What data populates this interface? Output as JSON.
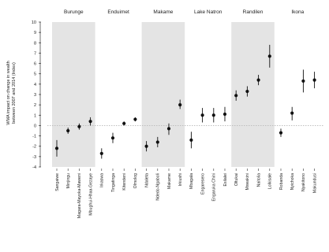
{
  "chart_data": {
    "type": "scatter",
    "ylabel_lines": [
      "WMA impact on change in wealth",
      "between 2007 and 2014 (Index)"
    ],
    "ylim": [
      -4,
      10
    ],
    "yticks": [
      -4,
      -3,
      -2,
      -1,
      0,
      1,
      2,
      3,
      4,
      5,
      6,
      7,
      8,
      9,
      10
    ],
    "reference_line": 0,
    "grid": false,
    "panels": [
      {
        "name": "Burunge",
        "shaded": true,
        "points": [
          {
            "label": "Sangaiwe",
            "y": -2.2,
            "lo": -3.0,
            "hi": -1.4
          },
          {
            "label": "Minjingu",
            "y": -0.5,
            "lo": -0.8,
            "hi": -0.2
          },
          {
            "label": "Magara-Mayoka-Maweni",
            "y": -0.1,
            "lo": -0.4,
            "hi": 0.2
          },
          {
            "label": "Mbughui-Hhaa-Gezaye",
            "y": 0.4,
            "lo": 0.0,
            "hi": 0.8
          }
        ]
      },
      {
        "name": "Enduimet",
        "shaded": false,
        "points": [
          {
            "label": "Irkaswa",
            "y": -2.7,
            "lo": -3.2,
            "hi": -2.2
          },
          {
            "label": "Tingatinga",
            "y": -1.2,
            "lo": -1.7,
            "hi": -0.7
          },
          {
            "label": "Kitendeni",
            "y": 0.2,
            "lo": 0.0,
            "hi": 0.4
          },
          {
            "label": "Olmolog",
            "y": 0.6,
            "lo": 0.4,
            "hi": 0.8
          }
        ]
      },
      {
        "name": "Makame",
        "shaded": true,
        "points": [
          {
            "label": "Ndaleta",
            "y": -2.0,
            "lo": -2.5,
            "hi": -1.5
          },
          {
            "label": "Ndedo-Ngaboli",
            "y": -1.6,
            "lo": -2.1,
            "hi": -1.1
          },
          {
            "label": "Makame",
            "y": -0.3,
            "lo": -0.9,
            "hi": 0.2
          },
          {
            "label": "Irkiushi",
            "y": 2.0,
            "lo": 1.6,
            "hi": 2.5
          }
        ]
      },
      {
        "name": "Lake Natron",
        "shaded": false,
        "points": [
          {
            "label": "Mbagala",
            "y": -1.4,
            "lo": -2.2,
            "hi": -0.6
          },
          {
            "label": "Engaresero",
            "y": 1.0,
            "lo": 0.3,
            "hi": 1.7
          },
          {
            "label": "Engaruka Chini",
            "y": 1.0,
            "lo": 0.3,
            "hi": 1.7
          },
          {
            "label": "Esilalei",
            "y": 1.1,
            "lo": 0.4,
            "hi": 1.8
          }
        ]
      },
      {
        "name": "Randilen",
        "shaded": true,
        "points": [
          {
            "label": "Oltukai",
            "y": 2.9,
            "lo": 2.4,
            "hi": 3.4
          },
          {
            "label": "Mswakini",
            "y": 3.3,
            "lo": 2.8,
            "hi": 3.8
          },
          {
            "label": "Naitolia",
            "y": 4.4,
            "lo": 3.9,
            "hi": 4.9
          },
          {
            "label": "Lolkisale",
            "y": 6.7,
            "lo": 5.6,
            "hi": 7.8
          }
        ]
      },
      {
        "name": "Ikona",
        "shaded": false,
        "points": [
          {
            "label": "Robanda",
            "y": -0.7,
            "lo": -1.1,
            "hi": -0.3
          },
          {
            "label": "Nyichoka",
            "y": 1.2,
            "lo": 0.5,
            "hi": 1.8
          },
          {
            "label": "Nyakitono",
            "y": 4.3,
            "lo": 3.2,
            "hi": 5.4
          },
          {
            "label": "Makundusi",
            "y": 4.4,
            "lo": 3.6,
            "hi": 5.2
          }
        ]
      }
    ]
  }
}
